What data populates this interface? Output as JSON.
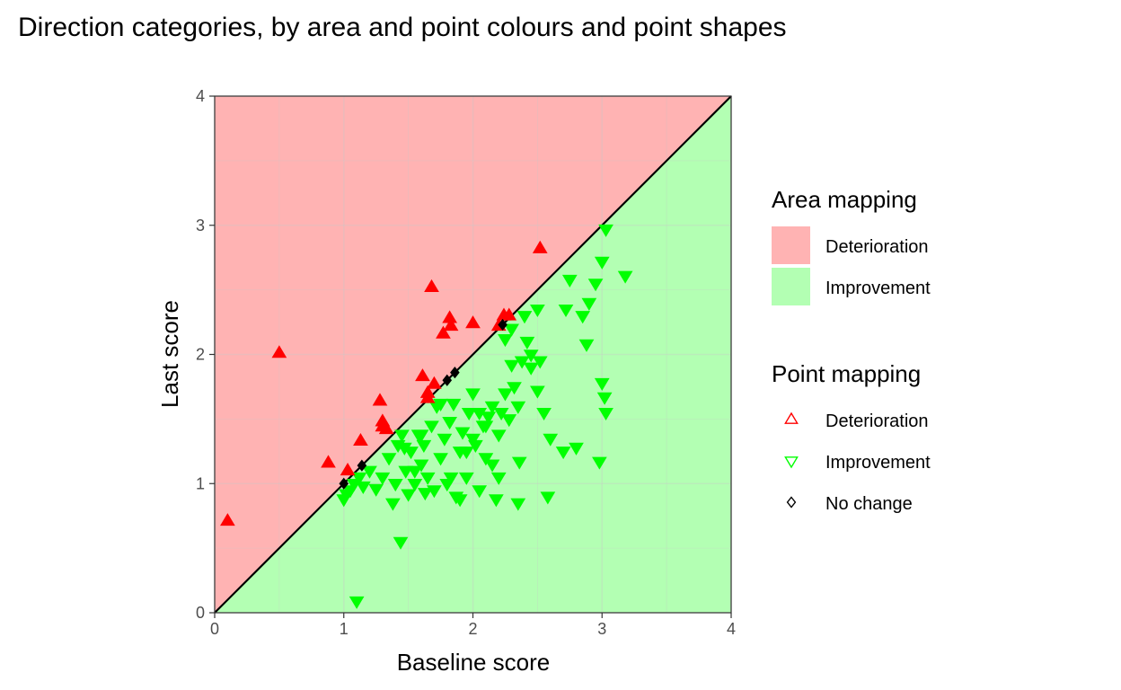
{
  "chart_data": {
    "type": "scatter",
    "title": "Direction categories, by area and point colours and point shapes",
    "xlabel": "Baseline score",
    "ylabel": "Last score",
    "xlim": [
      0,
      4
    ],
    "ylim": [
      0,
      4
    ],
    "xticks": [
      "0",
      "1",
      "2",
      "3",
      "4"
    ],
    "yticks": [
      "0",
      "1",
      "2",
      "3",
      "4"
    ],
    "grid": true,
    "reference_line": {
      "from": [
        0,
        0
      ],
      "to": [
        4,
        4
      ],
      "color": "#000000"
    },
    "areas": [
      {
        "name": "Deterioration",
        "color": "#ffb3b3",
        "region": "above-diagonal"
      },
      {
        "name": "Improvement",
        "color": "#b3ffb3",
        "region": "below-diagonal"
      }
    ],
    "legend": {
      "placement": "right",
      "area_title": "Area mapping",
      "point_title": "Point mapping",
      "area_items": [
        {
          "label": "Deterioration",
          "color": "#ffb3b3"
        },
        {
          "label": "Improvement",
          "color": "#b3ffb3"
        }
      ],
      "point_items": [
        {
          "label": "Deterioration",
          "color": "#ff0000",
          "shape": "triangle-up"
        },
        {
          "label": "Improvement",
          "color": "#00ff00",
          "shape": "triangle-down"
        },
        {
          "label": "No change",
          "color": "#000000",
          "shape": "diamond"
        }
      ]
    },
    "series": [
      {
        "name": "Deterioration",
        "color": "#ff0000",
        "shape": "triangle-up",
        "points": [
          [
            0.1,
            0.71
          ],
          [
            0.5,
            2.01
          ],
          [
            0.88,
            1.16
          ],
          [
            1.03,
            1.1
          ],
          [
            1.13,
            1.33
          ],
          [
            1.28,
            1.64
          ],
          [
            1.3,
            1.48
          ],
          [
            1.3,
            1.44
          ],
          [
            1.33,
            1.42
          ],
          [
            1.61,
            1.83
          ],
          [
            1.65,
            1.7
          ],
          [
            1.65,
            1.66
          ],
          [
            1.68,
            2.52
          ],
          [
            1.7,
            1.77
          ],
          [
            1.77,
            2.16
          ],
          [
            1.82,
            2.28
          ],
          [
            1.83,
            2.22
          ],
          [
            2.0,
            2.24
          ],
          [
            2.2,
            2.22
          ],
          [
            2.24,
            2.3
          ],
          [
            2.28,
            2.3
          ],
          [
            2.52,
            2.82
          ]
        ]
      },
      {
        "name": "Improvement",
        "color": "#00ff00",
        "shape": "triangle-down",
        "points": [
          [
            1.0,
            0.88
          ],
          [
            1.02,
            0.92
          ],
          [
            1.05,
            0.95
          ],
          [
            1.08,
            1.0
          ],
          [
            1.1,
            0.09
          ],
          [
            1.12,
            1.05
          ],
          [
            1.15,
            0.98
          ],
          [
            1.2,
            1.1
          ],
          [
            1.25,
            0.96
          ],
          [
            1.3,
            1.05
          ],
          [
            1.35,
            1.2
          ],
          [
            1.38,
            0.85
          ],
          [
            1.4,
            1.0
          ],
          [
            1.42,
            1.3
          ],
          [
            1.44,
            0.55
          ],
          [
            1.45,
            1.38
          ],
          [
            1.48,
            1.1
          ],
          [
            1.5,
            0.92
          ],
          [
            1.52,
            1.25
          ],
          [
            1.55,
            1.0
          ],
          [
            1.58,
            1.38
          ],
          [
            1.6,
            1.15
          ],
          [
            1.62,
            1.3
          ],
          [
            1.65,
            1.05
          ],
          [
            1.68,
            1.45
          ],
          [
            1.7,
            0.95
          ],
          [
            1.72,
            1.6
          ],
          [
            1.75,
            1.2
          ],
          [
            1.78,
            1.35
          ],
          [
            1.8,
            1.0
          ],
          [
            1.82,
            1.48
          ],
          [
            1.85,
            1.62
          ],
          [
            1.87,
            0.9
          ],
          [
            1.9,
            1.25
          ],
          [
            1.92,
            1.4
          ],
          [
            1.95,
            1.05
          ],
          [
            1.97,
            1.55
          ],
          [
            2.0,
            1.7
          ],
          [
            2.02,
            1.3
          ],
          [
            2.05,
            0.95
          ],
          [
            2.08,
            1.45
          ],
          [
            2.1,
            1.2
          ],
          [
            2.12,
            1.52
          ],
          [
            2.15,
            1.6
          ],
          [
            2.18,
            0.88
          ],
          [
            2.2,
            1.38
          ],
          [
            2.22,
            1.55
          ],
          [
            2.25,
            2.12
          ],
          [
            2.28,
            1.5
          ],
          [
            2.3,
            2.2
          ],
          [
            2.32,
            1.75
          ],
          [
            2.35,
            0.85
          ],
          [
            2.36,
            1.17
          ],
          [
            2.38,
            1.95
          ],
          [
            2.4,
            2.3
          ],
          [
            2.45,
            2.0
          ],
          [
            2.5,
            1.72
          ],
          [
            2.52,
            1.95
          ],
          [
            2.55,
            1.55
          ],
          [
            2.58,
            0.9
          ],
          [
            2.7,
            1.25
          ],
          [
            2.72,
            2.35
          ],
          [
            2.75,
            2.58
          ],
          [
            2.8,
            1.28
          ],
          [
            2.85,
            2.3
          ],
          [
            2.88,
            2.08
          ],
          [
            2.9,
            2.4
          ],
          [
            2.95,
            2.55
          ],
          [
            2.98,
            1.17
          ],
          [
            3.0,
            1.78
          ],
          [
            3.0,
            2.72
          ],
          [
            3.02,
            1.67
          ],
          [
            3.03,
            1.55
          ],
          [
            3.03,
            2.97
          ],
          [
            3.18,
            2.61
          ],
          [
            1.55,
            1.1
          ],
          [
            1.6,
            1.38
          ],
          [
            1.75,
            1.62
          ],
          [
            1.9,
            0.88
          ],
          [
            2.0,
            1.35
          ],
          [
            2.1,
            1.45
          ],
          [
            2.15,
            1.15
          ],
          [
            2.25,
            1.7
          ],
          [
            2.3,
            1.92
          ],
          [
            2.42,
            2.1
          ],
          [
            2.5,
            2.35
          ],
          [
            2.6,
            1.35
          ],
          [
            1.47,
            1.28
          ],
          [
            1.63,
            0.93
          ],
          [
            1.83,
            1.05
          ],
          [
            1.95,
            1.25
          ],
          [
            2.05,
            1.55
          ],
          [
            2.2,
            1.05
          ],
          [
            2.35,
            1.6
          ],
          [
            2.45,
            1.9
          ]
        ]
      },
      {
        "name": "No change",
        "color": "#000000",
        "shape": "diamond",
        "points": [
          [
            1.0,
            1.0
          ],
          [
            1.14,
            1.14
          ],
          [
            1.8,
            1.8
          ],
          [
            1.86,
            1.86
          ],
          [
            2.23,
            2.23
          ]
        ]
      }
    ]
  }
}
